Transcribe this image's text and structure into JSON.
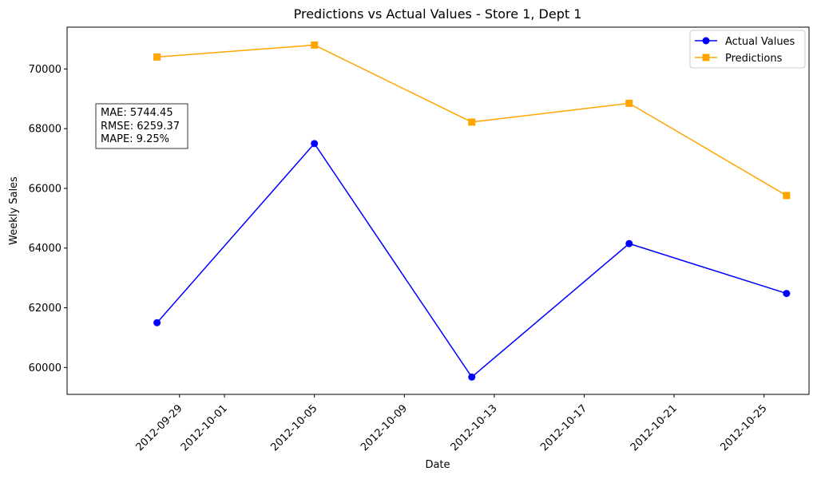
{
  "chart_data": {
    "type": "line",
    "title": "Predictions vs Actual Values - Store 1, Dept 1",
    "xlabel": "Date",
    "ylabel": "Weekly Sales",
    "x": [
      "2012-09-28",
      "2012-10-05",
      "2012-10-12",
      "2012-10-19",
      "2012-10-26"
    ],
    "xlim": [
      "2012-09-24",
      "2012-10-27"
    ],
    "ylim": [
      59100,
      71400
    ],
    "x_ticks": [
      "2012-09-29",
      "2012-10-01",
      "2012-10-05",
      "2012-10-09",
      "2012-10-13",
      "2012-10-17",
      "2012-10-21",
      "2012-10-25"
    ],
    "y_ticks": [
      60000,
      62000,
      64000,
      66000,
      68000,
      70000
    ],
    "grid": false,
    "legend_position": "top-right",
    "series": [
      {
        "name": "Actual Values",
        "color": "#0000ff",
        "marker": "circle",
        "values": [
          61500,
          67500,
          59680,
          64150,
          62480
        ]
      },
      {
        "name": "Predictions",
        "color": "#ffa500",
        "marker": "square",
        "values": [
          70400,
          70800,
          68220,
          68850,
          65760
        ]
      }
    ],
    "annotation": [
      "MAE: 5744.45",
      "RMSE: 6259.37",
      "MAPE: 9.25%"
    ]
  }
}
